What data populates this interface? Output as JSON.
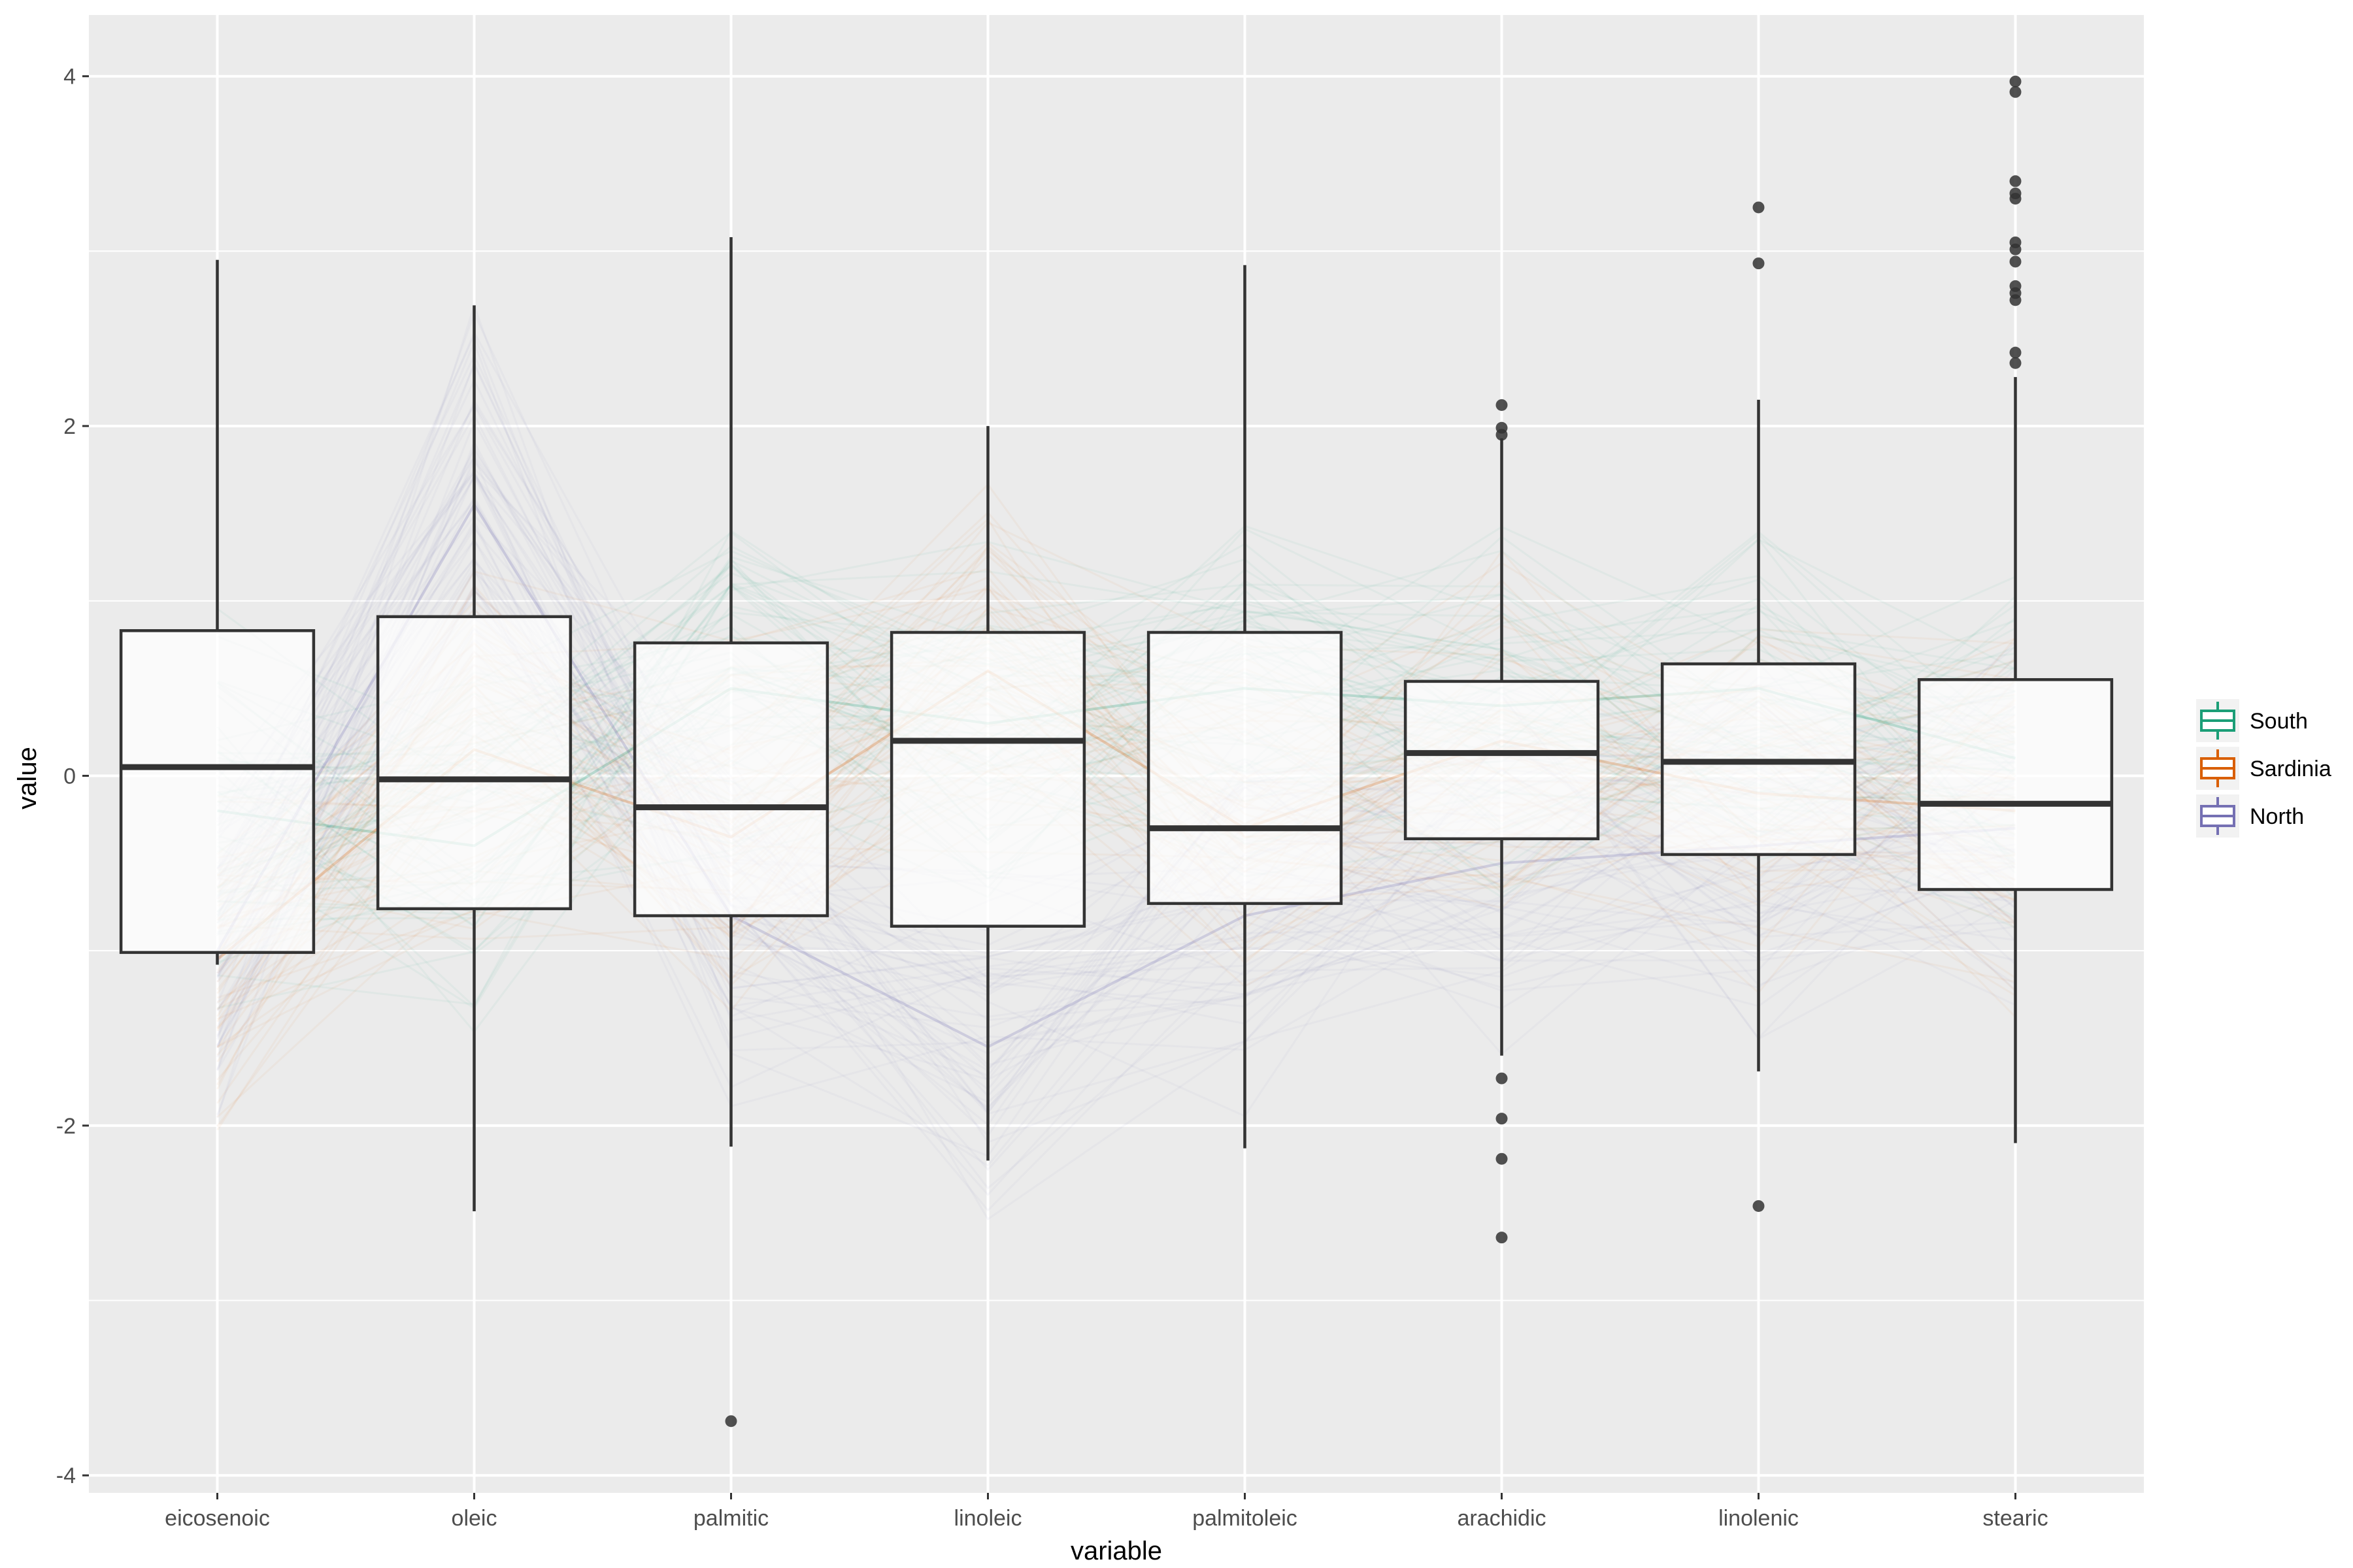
{
  "chart_data": {
    "type": "boxplot",
    "xlabel": "variable",
    "ylabel": "value",
    "ylim": [
      -4.1,
      4.35
    ],
    "y_ticks": [
      -4,
      -2,
      0,
      2,
      4
    ],
    "y_tick_labels": [
      "-4",
      "-2",
      "0",
      "2",
      "4"
    ],
    "grid": true,
    "legend_position": "right",
    "categories": [
      "eicosenoic",
      "oleic",
      "palmitic",
      "linoleic",
      "palmitoleic",
      "arachidic",
      "linolenic",
      "stearic"
    ],
    "boxes": [
      {
        "q1": -1.01,
        "median": 0.05,
        "q3": 0.83,
        "whisker_low": -1.08,
        "whisker_high": 2.95,
        "outliers": []
      },
      {
        "q1": -0.76,
        "median": -0.02,
        "q3": 0.91,
        "whisker_low": -2.49,
        "whisker_high": 2.69,
        "outliers": []
      },
      {
        "q1": -0.8,
        "median": -0.18,
        "q3": 0.76,
        "whisker_low": -2.12,
        "whisker_high": 3.08,
        "outliers": [
          -3.69
        ]
      },
      {
        "q1": -0.86,
        "median": 0.2,
        "q3": 0.82,
        "whisker_low": -2.2,
        "whisker_high": 2.0,
        "outliers": []
      },
      {
        "q1": -0.73,
        "median": -0.3,
        "q3": 0.82,
        "whisker_low": -2.13,
        "whisker_high": 2.92,
        "outliers": []
      },
      {
        "q1": -0.36,
        "median": 0.13,
        "q3": 0.54,
        "whisker_low": -1.6,
        "whisker_high": 1.93,
        "outliers": [
          2.12,
          1.99,
          1.95,
          -1.73,
          -1.96,
          -2.19,
          -2.64
        ]
      },
      {
        "q1": -0.45,
        "median": 0.08,
        "q3": 0.64,
        "whisker_low": -1.69,
        "whisker_high": 2.15,
        "outliers": [
          3.25,
          2.93,
          -2.46
        ]
      },
      {
        "q1": -0.65,
        "median": -0.16,
        "q3": 0.55,
        "whisker_low": -2.1,
        "whisker_high": 2.28,
        "outliers": [
          3.97,
          3.91,
          3.4,
          3.33,
          3.3,
          3.05,
          3.01,
          2.94,
          2.8,
          2.76,
          2.72,
          2.42,
          2.36
        ]
      }
    ],
    "series": [
      {
        "name": "South",
        "color": "#1b9e77",
        "profile": [
          -0.2,
          -0.4,
          0.5,
          0.3,
          0.5,
          0.4,
          0.5,
          0.1
        ]
      },
      {
        "name": "Sardinia",
        "color": "#d95f02",
        "profile": [
          -1.05,
          0.15,
          -0.35,
          0.6,
          -0.3,
          0.2,
          -0.1,
          -0.2
        ]
      },
      {
        "name": "North",
        "color": "#7570b3",
        "profile": [
          -1.0,
          1.55,
          -0.8,
          -1.55,
          -0.8,
          -0.5,
          -0.4,
          -0.3
        ]
      }
    ]
  }
}
